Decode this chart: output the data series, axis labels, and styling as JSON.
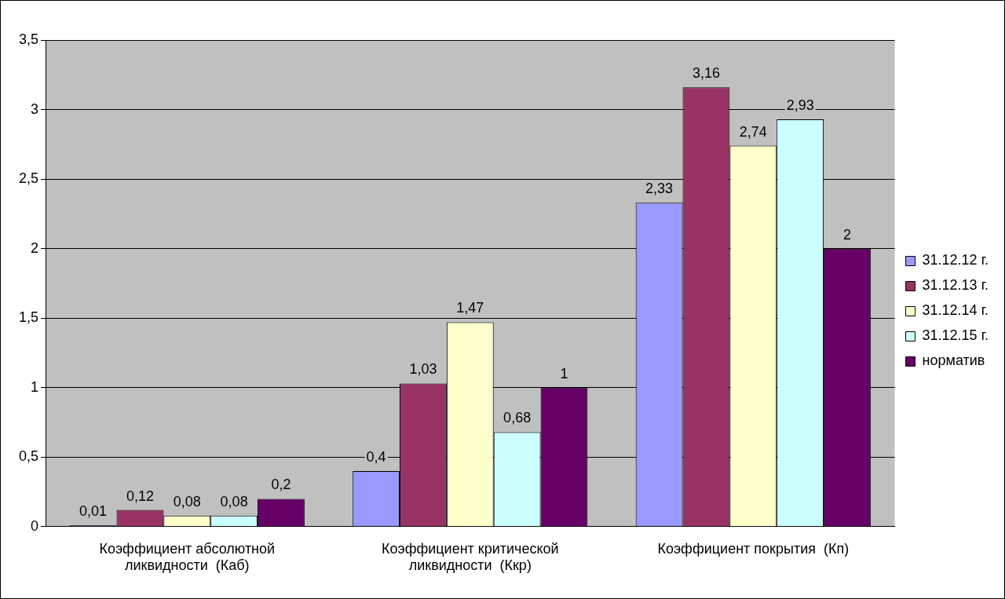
{
  "chart_data": {
    "type": "bar",
    "categories": [
      "Коэффициент абсолютной ликвидности  (Каб)",
      "Коэффициент критической ликвидности  (Ккр)",
      "Коэффициент покрытия  (Кп)"
    ],
    "series": [
      {
        "name": "31.12.12 г.",
        "color": "#9999ff",
        "values": [
          0.01,
          0.4,
          2.33
        ],
        "value_labels": [
          "0,01",
          "0,4",
          "2,33"
        ]
      },
      {
        "name": "31.12.13 г.",
        "color": "#993366",
        "values": [
          0.12,
          1.03,
          3.16
        ],
        "value_labels": [
          "0,12",
          "1,03",
          "3,16"
        ]
      },
      {
        "name": "31.12.14 г.",
        "color": "#ffffcc",
        "values": [
          0.08,
          1.47,
          2.74
        ],
        "value_labels": [
          "0,08",
          "1,47",
          "2,74"
        ]
      },
      {
        "name": "31.12.15 г.",
        "color": "#ccffff",
        "values": [
          0.08,
          0.68,
          2.93
        ],
        "value_labels": [
          "0,08",
          "0,68",
          "2,93"
        ]
      },
      {
        "name": "норматив",
        "color": "#660066",
        "values": [
          0.2,
          1,
          2
        ],
        "value_labels": [
          "0,2",
          "1",
          "2"
        ]
      }
    ],
    "ylim": [
      0,
      3.5
    ],
    "yticks": [
      0,
      {
        "value": 0.5,
        "label": "0,5"
      },
      1,
      {
        "value": 1.5,
        "label": "1,5"
      },
      2,
      {
        "value": 2.5,
        "label": "2,5"
      },
      3,
      {
        "value": 3.5,
        "label": "3,5"
      }
    ],
    "grid": "y",
    "legend": "right"
  }
}
